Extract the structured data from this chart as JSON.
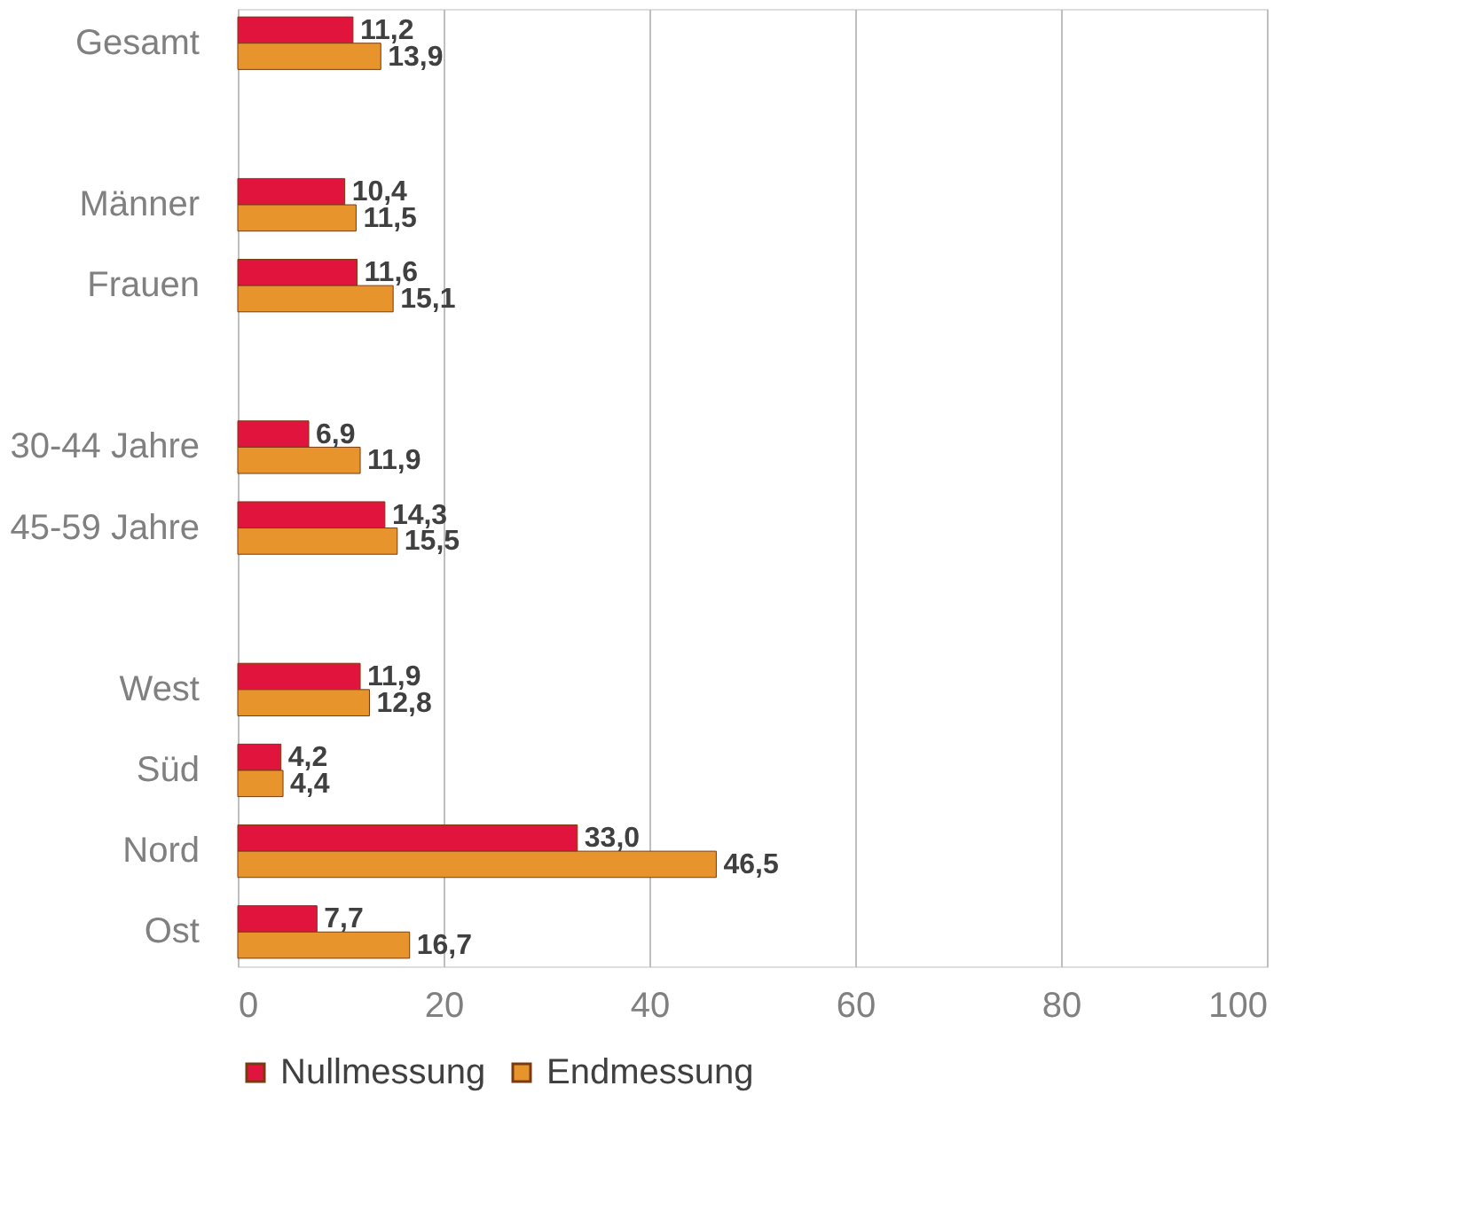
{
  "chart_data": {
    "type": "bar",
    "orientation": "horizontal",
    "categories": [
      "Gesamt",
      null,
      "Männer",
      "Frauen",
      null,
      "30-44 Jahre",
      "45-59 Jahre",
      null,
      "West",
      "Süd",
      "Nord",
      "Ost"
    ],
    "series": [
      {
        "name": "Nullmessung",
        "color": "#e0143c",
        "values": [
          11.2,
          null,
          10.4,
          11.6,
          null,
          6.9,
          14.3,
          null,
          11.9,
          4.2,
          33.0,
          7.7
        ],
        "value_labels": [
          "11,2",
          null,
          "10,4",
          "11,6",
          null,
          "6,9",
          "14,3",
          null,
          "11,9",
          "4,2",
          "33,0",
          "7,7"
        ]
      },
      {
        "name": "Endmessung",
        "color": "#e8942c",
        "values": [
          13.9,
          null,
          11.5,
          15.1,
          null,
          11.9,
          15.5,
          null,
          12.8,
          4.4,
          46.5,
          16.7
        ],
        "value_labels": [
          "13,9",
          null,
          "11,5",
          "15,1",
          null,
          "11,9",
          "15,5",
          null,
          "12,8",
          "4,4",
          "46,5",
          "16,7"
        ]
      }
    ],
    "xlim": [
      0,
      100
    ],
    "xticks": [
      0,
      20,
      40,
      60,
      80,
      100
    ],
    "grid": "x",
    "legend": "bottom"
  }
}
